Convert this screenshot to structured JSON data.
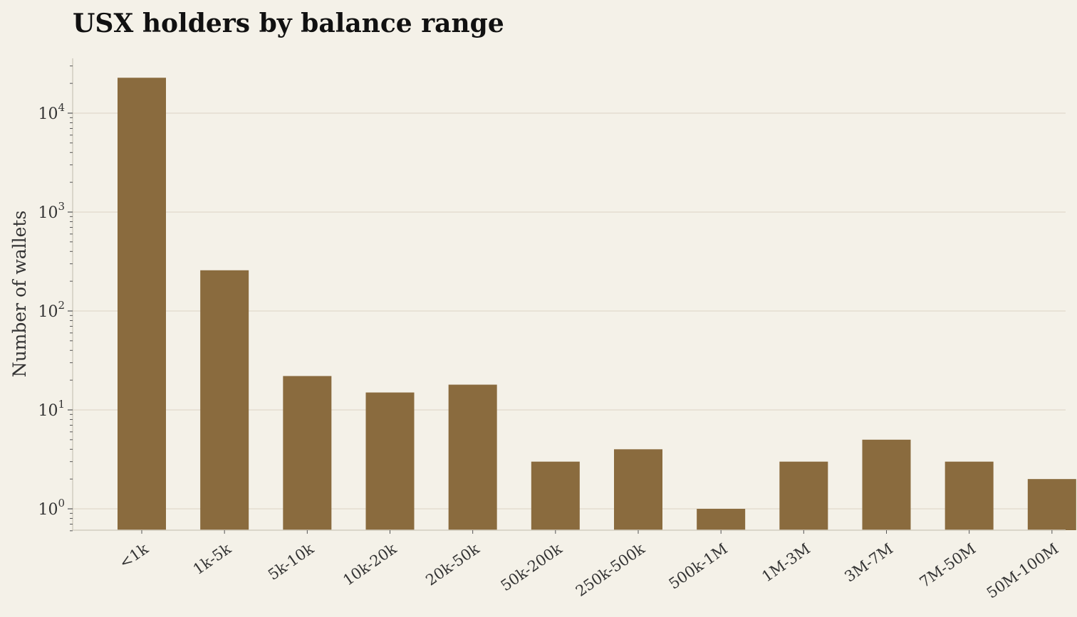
{
  "chart_data": {
    "type": "bar",
    "title": "USX holders by balance range",
    "xlabel": "",
    "ylabel": "Number of wallets",
    "yscale": "log",
    "ylim": [
      0.6,
      35000
    ],
    "grid": true,
    "categories": [
      "<1k",
      "1k-5k",
      "5k-10k",
      "10k-20k",
      "20k-50k",
      "50k-200k",
      "250k-500k",
      "500k-1M",
      "1M-3M",
      "3M-7M",
      "7M-50M",
      "50M-100M"
    ],
    "values": [
      22800,
      258,
      22,
      15,
      18,
      3,
      4,
      1,
      3,
      5,
      3,
      2
    ],
    "y_ticks": [
      {
        "value": 1,
        "base": "10",
        "exp": "0"
      },
      {
        "value": 10,
        "base": "10",
        "exp": "1"
      },
      {
        "value": 100,
        "base": "10",
        "exp": "2"
      },
      {
        "value": 1000,
        "base": "10",
        "exp": "3"
      },
      {
        "value": 10000,
        "base": "10",
        "exp": "4"
      }
    ],
    "colors": {
      "bar": "#8a6b3e",
      "grid": "#e3ded0",
      "axis": "#d2cdc0",
      "background": "#f4f1e8"
    }
  }
}
